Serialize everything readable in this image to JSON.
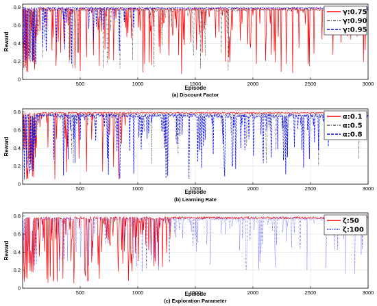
{
  "chart_data": [
    {
      "type": "line",
      "caption": "(a) Discount Factor",
      "xlabel": "Episode",
      "ylabel": "Reward",
      "xlim": [
        0,
        3000
      ],
      "ylim": [
        0,
        0.8
      ],
      "xticks": [
        500,
        1000,
        1500,
        2000,
        2500,
        3000
      ],
      "yticks": [
        0,
        0.2,
        0.4,
        0.6,
        0.8
      ],
      "grid": true,
      "legend_position": "top-right",
      "series": [
        {
          "name": "γ:0.75",
          "color": "#ff0000",
          "style": "solid",
          "baseline": 0.78,
          "noise": 0.012,
          "dip_prob": 0.26,
          "dip_min": 0.05,
          "dip_end": 3000
        },
        {
          "name": "γ:0.90",
          "color": "#555555",
          "style": "dashdot",
          "baseline": 0.77,
          "noise": 0.015,
          "dip_prob": 0.11,
          "dip_min": 0.1,
          "dip_end": 1800
        },
        {
          "name": "γ:0.95",
          "color": "#0000ff",
          "style": "dashed",
          "baseline": 0.79,
          "noise": 0.01,
          "dip_prob": 0.14,
          "dip_min": 0.15,
          "dip_end": 1000
        }
      ]
    },
    {
      "type": "line",
      "caption": "(b) Learning Rate",
      "xlabel": "Episode",
      "ylabel": "Reward",
      "xlim": [
        0,
        3000
      ],
      "ylim": [
        0,
        0.8
      ],
      "xticks": [
        500,
        1000,
        1500,
        2000,
        2500,
        3000
      ],
      "yticks": [
        0,
        0.2,
        0.4,
        0.6,
        0.8
      ],
      "grid": true,
      "legend_position": "top-right",
      "series": [
        {
          "name": "α:0.1",
          "color": "#ff0000",
          "style": "solid",
          "baseline": 0.79,
          "noise": 0.008,
          "dip_prob": 0.16,
          "dip_min": 0.05,
          "dip_end": 900
        },
        {
          "name": "α:0.5",
          "color": "#555555",
          "style": "dashdot",
          "baseline": 0.77,
          "noise": 0.015,
          "dip_prob": 0.08,
          "dip_min": 0.2,
          "dip_end": 3000
        },
        {
          "name": "α:0.8",
          "color": "#0000ff",
          "style": "dashed",
          "baseline": 0.76,
          "noise": 0.02,
          "dip_prob": 0.22,
          "dip_min": 0.05,
          "dip_end": 2700
        }
      ]
    },
    {
      "type": "line",
      "caption": "(c) Exploration Parameter",
      "xlabel": "Episode",
      "ylabel": "Reward",
      "xlim": [
        0,
        3000
      ],
      "ylim": [
        0,
        0.8
      ],
      "xticks": [
        500,
        1000,
        1500,
        2000,
        2500,
        3000
      ],
      "yticks": [
        0,
        0.2,
        0.4,
        0.6,
        0.8
      ],
      "grid": true,
      "legend_position": "top-right",
      "series": [
        {
          "name": "ζ:50",
          "color": "#ff0000",
          "style": "solid",
          "baseline": 0.78,
          "noise": 0.012,
          "dip_prob": 0.42,
          "dip_min": 0.05,
          "dip_end": 1300
        },
        {
          "name": "ζ:100",
          "color": "#0000ff",
          "style": "dotted",
          "baseline": 0.77,
          "noise": 0.02,
          "dip_prob": 0.2,
          "dip_min": 0.15,
          "dip_end": 3000
        }
      ]
    }
  ]
}
